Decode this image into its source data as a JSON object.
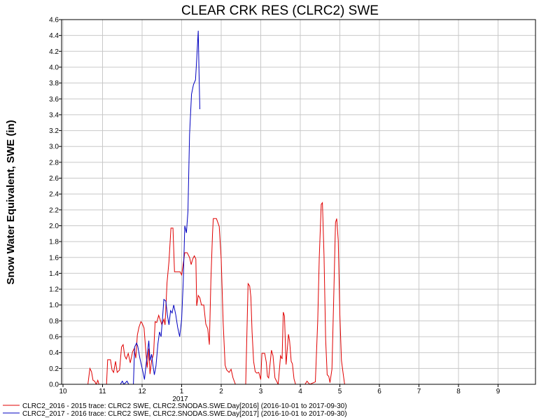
{
  "chart_data": {
    "type": "line",
    "title": "CLEAR CRK RES (CLRC2) SWE",
    "ylabel": "Snow Water Equivalent, SWE (in)",
    "xlabel": "",
    "ylim": [
      0,
      4.6
    ],
    "yticks": [
      "0.0",
      "0.2",
      "0.4",
      "0.6",
      "0.8",
      "1.0",
      "1.2",
      "1.4",
      "1.6",
      "1.8",
      "2.0",
      "2.2",
      "2.4",
      "2.6",
      "2.8",
      "3.0",
      "3.2",
      "3.4",
      "3.6",
      "3.8",
      "4.0",
      "4.2",
      "4.4",
      "4.6"
    ],
    "xlim": [
      0,
      12
    ],
    "xticks": [
      {
        "label": "10",
        "month": 0
      },
      {
        "label": "11",
        "month": 1
      },
      {
        "label": "12",
        "month": 2
      },
      {
        "label": "1",
        "month": 3
      },
      {
        "label": "2",
        "month": 4
      },
      {
        "label": "3",
        "month": 5
      },
      {
        "label": "4",
        "month": 6
      },
      {
        "label": "5",
        "month": 7
      },
      {
        "label": "6",
        "month": 8
      },
      {
        "label": "7",
        "month": 9
      },
      {
        "label": "8",
        "month": 10
      },
      {
        "label": "9",
        "month": 11
      }
    ],
    "year_label": "2017",
    "year_label_month": 3,
    "grid": true,
    "legend_position": "bottom-left",
    "series": [
      {
        "name": "CLRC2_2016 - 2015 trace: CLRC2 SWE, CLRC2.SNODAS.SWE.Day[2016] (2016-10-01 to 2017-09-30)",
        "color": "#e00000",
        "points": [
          [
            0.63,
            0
          ],
          [
            0.68,
            0.2
          ],
          [
            0.72,
            0.16
          ],
          [
            0.76,
            0.05
          ],
          [
            0.8,
            0.04
          ],
          [
            0.84,
            0.0
          ],
          [
            0.88,
            0.05
          ],
          [
            0.91,
            0
          ],
          [
            1.1,
            0
          ],
          [
            1.13,
            0.31
          ],
          [
            1.2,
            0.31
          ],
          [
            1.24,
            0.18
          ],
          [
            1.28,
            0.15
          ],
          [
            1.33,
            0.29
          ],
          [
            1.37,
            0.15
          ],
          [
            1.43,
            0.18
          ],
          [
            1.48,
            0.47
          ],
          [
            1.52,
            0.5
          ],
          [
            1.56,
            0.36
          ],
          [
            1.6,
            0.32
          ],
          [
            1.65,
            0.39
          ],
          [
            1.7,
            0.27
          ],
          [
            1.76,
            0.41
          ],
          [
            1.8,
            0.45
          ],
          [
            1.84,
            0.33
          ],
          [
            1.88,
            0.62
          ],
          [
            1.92,
            0.72
          ],
          [
            1.97,
            0.79
          ],
          [
            2.0,
            0.77
          ],
          [
            2.05,
            0.71
          ],
          [
            2.09,
            0.44
          ],
          [
            2.13,
            0.21
          ],
          [
            2.17,
            0.45
          ],
          [
            2.2,
            0.13
          ],
          [
            2.24,
            0.3
          ],
          [
            2.29,
            0.38
          ],
          [
            2.33,
            0.79
          ],
          [
            2.37,
            0.78
          ],
          [
            2.42,
            0.87
          ],
          [
            2.46,
            0.81
          ],
          [
            2.5,
            0.75
          ],
          [
            2.55,
            0.82
          ],
          [
            2.58,
            0.75
          ],
          [
            2.63,
            1.28
          ],
          [
            2.68,
            1.55
          ],
          [
            2.73,
            1.97
          ],
          [
            2.78,
            1.97
          ],
          [
            2.82,
            1.42
          ],
          [
            2.9,
            1.42
          ],
          [
            2.96,
            1.42
          ],
          [
            3.0,
            1.38
          ],
          [
            3.04,
            1.52
          ],
          [
            3.08,
            1.66
          ],
          [
            3.14,
            1.66
          ],
          [
            3.2,
            1.6
          ],
          [
            3.24,
            1.51
          ],
          [
            3.28,
            1.58
          ],
          [
            3.32,
            1.62
          ],
          [
            3.36,
            1.58
          ],
          [
            3.38,
            0.99
          ],
          [
            3.42,
            1.12
          ],
          [
            3.46,
            1.09
          ],
          [
            3.5,
            1.0
          ],
          [
            3.56,
            1.0
          ],
          [
            3.61,
            0.76
          ],
          [
            3.66,
            0.7
          ],
          [
            3.7,
            0.5
          ],
          [
            3.74,
            1.32
          ],
          [
            3.78,
            1.9
          ],
          [
            3.8,
            2.09
          ],
          [
            3.88,
            2.09
          ],
          [
            3.95,
            1.99
          ],
          [
            4.0,
            1.58
          ],
          [
            4.05,
            0.78
          ],
          [
            4.1,
            0.24
          ],
          [
            4.14,
            0.18
          ],
          [
            4.2,
            0.15
          ],
          [
            4.25,
            0.19
          ],
          [
            4.3,
            0.08
          ],
          [
            4.36,
            0
          ],
          [
            4.62,
            0
          ],
          [
            4.68,
            1.27
          ],
          [
            4.72,
            1.24
          ],
          [
            4.75,
            1.1
          ],
          [
            4.78,
            0.66
          ],
          [
            4.82,
            0.29
          ],
          [
            4.86,
            0.16
          ],
          [
            4.9,
            0.14
          ],
          [
            4.95,
            0.15
          ],
          [
            5.0,
            0.06
          ],
          [
            5.03,
            0.39
          ],
          [
            5.1,
            0.39
          ],
          [
            5.14,
            0.28
          ],
          [
            5.17,
            0.1
          ],
          [
            5.2,
            0.08
          ],
          [
            5.27,
            0.43
          ],
          [
            5.31,
            0.36
          ],
          [
            5.36,
            0.08
          ],
          [
            5.4,
            0.04
          ],
          [
            5.44,
            0
          ],
          [
            5.5,
            0.36
          ],
          [
            5.54,
            0.32
          ],
          [
            5.57,
            0.91
          ],
          [
            5.6,
            0.86
          ],
          [
            5.64,
            0.25
          ],
          [
            5.7,
            0.63
          ],
          [
            5.73,
            0.55
          ],
          [
            5.77,
            0.29
          ],
          [
            5.8,
            0.26
          ],
          [
            5.84,
            0.07
          ],
          [
            5.88,
            0
          ],
          [
            6.12,
            0
          ],
          [
            6.17,
            0.04
          ],
          [
            6.2,
            0.02
          ],
          [
            6.24,
            0
          ],
          [
            6.38,
            0.03
          ],
          [
            6.44,
            0.8
          ],
          [
            6.48,
            1.6
          ],
          [
            6.53,
            2.27
          ],
          [
            6.56,
            2.29
          ],
          [
            6.6,
            1.62
          ],
          [
            6.64,
            0.57
          ],
          [
            6.68,
            0.12
          ],
          [
            6.72,
            0.1
          ],
          [
            6.75,
            0.02
          ],
          [
            6.8,
            0.19
          ],
          [
            6.84,
            1.0
          ],
          [
            6.89,
            2.04
          ],
          [
            6.92,
            2.09
          ],
          [
            6.96,
            1.82
          ],
          [
            7.0,
            0.88
          ],
          [
            7.04,
            0.3
          ],
          [
            7.08,
            0.15
          ],
          [
            7.12,
            0.0
          ],
          [
            7.18,
            0
          ],
          [
            13,
            0
          ]
        ]
      },
      {
        "name": "CLRC2_2017 - 2016 trace: CLRC2 SWE, CLRC2.SNODAS.SWE.Day[2017] (2016-10-01 to 2017-09-30)",
        "color": "#0000c0",
        "points": [
          [
            1.45,
            0
          ],
          [
            1.5,
            0.04
          ],
          [
            1.54,
            0.0
          ],
          [
            1.62,
            0.04
          ],
          [
            1.66,
            0.0
          ],
          [
            1.78,
            0
          ],
          [
            1.81,
            0.47
          ],
          [
            1.86,
            0.52
          ],
          [
            1.89,
            0.48
          ],
          [
            1.94,
            0.34
          ],
          [
            1.97,
            0.27
          ],
          [
            2.02,
            0.16
          ],
          [
            2.06,
            0.06
          ],
          [
            2.1,
            0.25
          ],
          [
            2.14,
            0.42
          ],
          [
            2.17,
            0.55
          ],
          [
            2.2,
            0.3
          ],
          [
            2.24,
            0.38
          ],
          [
            2.27,
            0.25
          ],
          [
            2.31,
            0.12
          ],
          [
            2.35,
            0.23
          ],
          [
            2.4,
            0.51
          ],
          [
            2.44,
            0.66
          ],
          [
            2.48,
            0.6
          ],
          [
            2.52,
            0.86
          ],
          [
            2.55,
            1.07
          ],
          [
            2.6,
            1.05
          ],
          [
            2.64,
            0.87
          ],
          [
            2.68,
            0.75
          ],
          [
            2.72,
            0.93
          ],
          [
            2.76,
            0.9
          ],
          [
            2.8,
            1.0
          ],
          [
            2.85,
            0.88
          ],
          [
            2.9,
            0.72
          ],
          [
            2.95,
            0.6
          ],
          [
            3.0,
            0.82
          ],
          [
            3.04,
            1.3
          ],
          [
            3.08,
            2.0
          ],
          [
            3.12,
            1.91
          ],
          [
            3.16,
            2.18
          ],
          [
            3.2,
            3.15
          ],
          [
            3.25,
            3.66
          ],
          [
            3.3,
            3.78
          ],
          [
            3.35,
            3.84
          ],
          [
            3.38,
            4.1
          ],
          [
            3.42,
            4.46
          ],
          [
            3.44,
            3.9
          ],
          [
            3.46,
            3.47
          ]
        ]
      }
    ]
  }
}
